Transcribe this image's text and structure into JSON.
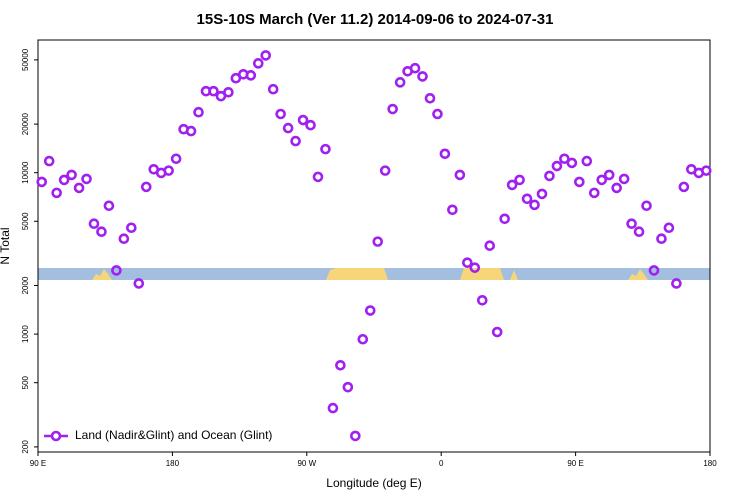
{
  "chart_data": {
    "type": "scatter",
    "title": "15S-10S March (Ver 11.2)   2014-09-06 to 2024-07-31",
    "xlabel": "Longitude (deg E)",
    "ylabel": "N Total",
    "yscale": "log",
    "xlim": [
      90,
      540
    ],
    "ylim": [
      186,
      66400
    ],
    "xticks": [
      {
        "value": 90,
        "label": "90 E"
      },
      180,
      {
        "value": 270,
        "label": "90 W"
      },
      {
        "value": 360,
        "label": "0"
      },
      {
        "value": 450,
        "label": "90 E"
      },
      {
        "value": 540,
        "label": "180"
      }
    ],
    "yticks": [
      200,
      500,
      1000,
      2000,
      5000,
      10000,
      20000,
      50000
    ],
    "legend": "lower left",
    "x": [
      92.5,
      97.5,
      102.5,
      107.5,
      112.5,
      117.5,
      122.5,
      127.5,
      132.5,
      137.5,
      142.5,
      147.5,
      152.5,
      157.5,
      162.5,
      167.5,
      172.5,
      177.5,
      182.5,
      187.5,
      192.5,
      197.5,
      202.5,
      207.5,
      212.5,
      217.5,
      222.5,
      227.5,
      232.5,
      237.5,
      242.5,
      247.5,
      252.5,
      257.5,
      262.5,
      267.5,
      272.5,
      277.5,
      282.5,
      287.5,
      292.5,
      297.5,
      302.5,
      307.5,
      312.5,
      317.5,
      322.5,
      327.5,
      332.5,
      337.5,
      342.5,
      347.5,
      352.5,
      357.5,
      362.5,
      367.5,
      372.5,
      377.5,
      382.5,
      387.5,
      392.5,
      397.5,
      402.5,
      407.5,
      412.5,
      417.5,
      422.5,
      427.5,
      432.5,
      437.5,
      442.5,
      447.5,
      452.5,
      457.5,
      462.5,
      467.5,
      472.5,
      477.5,
      482.5,
      487.5,
      492.5,
      497.5,
      502.5,
      507.5,
      512.5,
      517.5,
      522.5,
      527.5,
      532.5,
      537.5
    ],
    "series": [
      {
        "name": "Land (Nadir&Glint) and Ocean (Glint)",
        "color": "#a020f0",
        "values": [
          8770,
          11800,
          7500,
          9020,
          9690,
          8050,
          9150,
          4830,
          4310,
          6240,
          2480,
          3900,
          4560,
          2060,
          8170,
          10500,
          9970,
          10300,
          12200,
          18600,
          18100,
          23700,
          32000,
          32000,
          29800,
          31500,
          38500,
          40700,
          40100,
          47600,
          53300,
          32900,
          23100,
          18900,
          15700,
          21200,
          19700,
          9420,
          14000,
          348,
          641,
          469,
          234,
          929,
          1400,
          3740,
          10300,
          24800,
          36300,
          42500,
          44400,
          39500,
          28900,
          23100,
          13100,
          5890,
          9690,
          2770,
          2580,
          1620,
          3530,
          1030,
          5180,
          8400,
          9020,
          6890,
          6320,
          7390,
          9550,
          11000,
          12200,
          11500,
          8770,
          11800,
          7500,
          9020,
          9690,
          8050,
          9150,
          4830,
          4310,
          6240,
          2480,
          3900,
          4560,
          2060,
          8170,
          10500,
          9970,
          10300
        ]
      }
    ]
  }
}
